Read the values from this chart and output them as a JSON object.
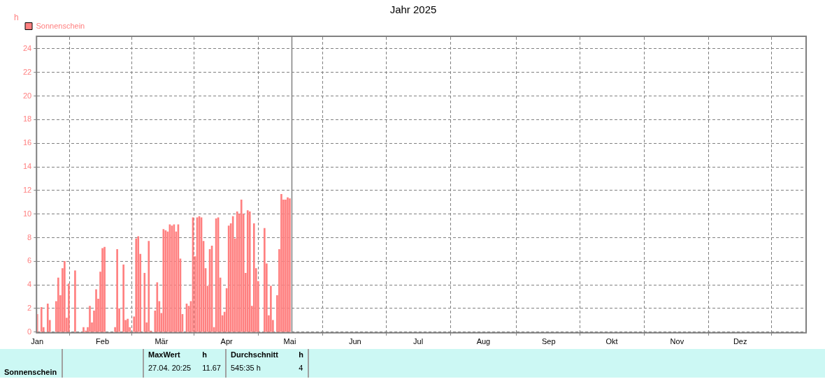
{
  "chart_data": {
    "type": "bar",
    "title": "Jahr 2025",
    "ylabel": "h",
    "x": [
      "2025-01-01",
      "2025-01-03",
      "2025-01-04",
      "2025-01-06",
      "2025-01-07",
      "2025-01-10",
      "2025-01-11",
      "2025-01-12",
      "2025-01-13",
      "2025-01-14",
      "2025-01-15",
      "2025-01-16",
      "2025-01-19",
      "2025-01-23",
      "2025-01-24",
      "2025-01-25",
      "2025-01-26",
      "2025-01-27",
      "2025-01-28",
      "2025-01-29",
      "2025-01-30",
      "2025-01-31",
      "2025-02-01",
      "2025-02-02",
      "2025-02-07",
      "2025-02-08",
      "2025-02-09",
      "2025-02-11",
      "2025-02-12",
      "2025-02-13",
      "2025-02-14",
      "2025-02-16",
      "2025-02-17",
      "2025-02-18",
      "2025-02-19",
      "2025-02-21",
      "2025-02-22",
      "2025-02-23",
      "2025-02-24",
      "2025-02-26",
      "2025-02-27",
      "2025-02-28",
      "2025-03-01",
      "2025-03-02",
      "2025-03-03",
      "2025-03-04",
      "2025-03-05",
      "2025-03-06",
      "2025-03-07",
      "2025-03-08",
      "2025-03-09",
      "2025-03-10",
      "2025-03-11",
      "2025-03-13",
      "2025-03-14",
      "2025-03-15",
      "2025-03-16",
      "2025-03-17",
      "2025-03-18",
      "2025-03-19",
      "2025-03-20",
      "2025-03-21",
      "2025-03-22",
      "2025-03-23",
      "2025-03-24",
      "2025-03-25",
      "2025-03-26",
      "2025-03-27",
      "2025-03-28",
      "2025-03-29",
      "2025-03-30",
      "2025-03-31",
      "2025-04-01",
      "2025-04-02",
      "2025-04-03",
      "2025-04-04",
      "2025-04-05",
      "2025-04-06",
      "2025-04-07",
      "2025-04-08",
      "2025-04-09",
      "2025-04-10",
      "2025-04-11",
      "2025-04-12",
      "2025-04-13",
      "2025-04-14",
      "2025-04-15",
      "2025-04-16",
      "2025-04-19",
      "2025-04-20",
      "2025-04-21",
      "2025-04-22",
      "2025-04-23",
      "2025-04-25",
      "2025-04-26",
      "2025-04-27",
      "2025-04-28",
      "2025-04-29",
      "2025-04-30",
      "2025-05-01"
    ],
    "series": [
      {
        "name": "Sonnenschein",
        "color": "#ff8080",
        "values": [
          1.5,
          2.1,
          0.4,
          2.4,
          1.0,
          2.6,
          4.6,
          3.1,
          5.4,
          6.0,
          1.2,
          4.1,
          5.2,
          0.4,
          0.1,
          0.4,
          2.2,
          0.8,
          1.8,
          3.6,
          2.8,
          5.1,
          7.1,
          7.2,
          0.4,
          7.0,
          2.0,
          5.7,
          1.0,
          1.1,
          0.4,
          1.3,
          7.9,
          8.1,
          6.6,
          5.0,
          0.8,
          7.7,
          0.1,
          1.8,
          4.2,
          2.6,
          1.6,
          8.7,
          8.6,
          8.5,
          9.1,
          9.0,
          9.1,
          8.5,
          9.1,
          6.2,
          1.5,
          2.4,
          2.2,
          2.6,
          9.7,
          6.4,
          9.7,
          9.8,
          9.7,
          7.7,
          5.4,
          3.9,
          7.0,
          7.3,
          0.4,
          9.6,
          9.7,
          4.6,
          1.4,
          1.7,
          3.7,
          9.0,
          9.2,
          9.8,
          7.9,
          10.2,
          10.0,
          11.2,
          10.0,
          5.0,
          10.3,
          10.2,
          2.2,
          9.2,
          5.4,
          4.3,
          8.8,
          5.8,
          1.4,
          3.9,
          1.0,
          3.1,
          7.0,
          11.67,
          11.2,
          11.2,
          11.4,
          11.3
        ]
      }
    ],
    "xlim": [
      "2025-01-01",
      "2026-01-01"
    ],
    "xticks": [
      {
        "value": "2025-01-01",
        "label": "Jan"
      },
      {
        "value": "2025-02-01",
        "label": "Feb"
      },
      {
        "value": "2025-03-01",
        "label": "Mär"
      },
      {
        "value": "2025-04-01",
        "label": "Apr"
      },
      {
        "value": "2025-05-01",
        "label": "Mai"
      },
      {
        "value": "2025-06-01",
        "label": "Jun"
      },
      {
        "value": "2025-07-01",
        "label": "Jul"
      },
      {
        "value": "2025-08-01",
        "label": "Aug"
      },
      {
        "value": "2025-09-01",
        "label": "Sep"
      },
      {
        "value": "2025-10-01",
        "label": "Okt"
      },
      {
        "value": "2025-11-01",
        "label": "Nov"
      },
      {
        "value": "2025-12-01",
        "label": "Dez"
      }
    ],
    "ylim": [
      0,
      25
    ],
    "yticks": [
      0,
      2,
      4,
      6,
      8,
      10,
      12,
      14,
      16,
      18,
      20,
      22,
      24
    ],
    "grid": true,
    "legend": "top left",
    "ref_lines": [
      {
        "axis": "x",
        "value": "2025-05-02",
        "color": "#808080"
      }
    ],
    "annotations": [
      "Sonnenschein",
      "MaxWert",
      "h",
      "27.04.  20:25",
      "11.67",
      "Durchschnitt",
      "h",
      "545:35 h",
      "4"
    ]
  }
}
